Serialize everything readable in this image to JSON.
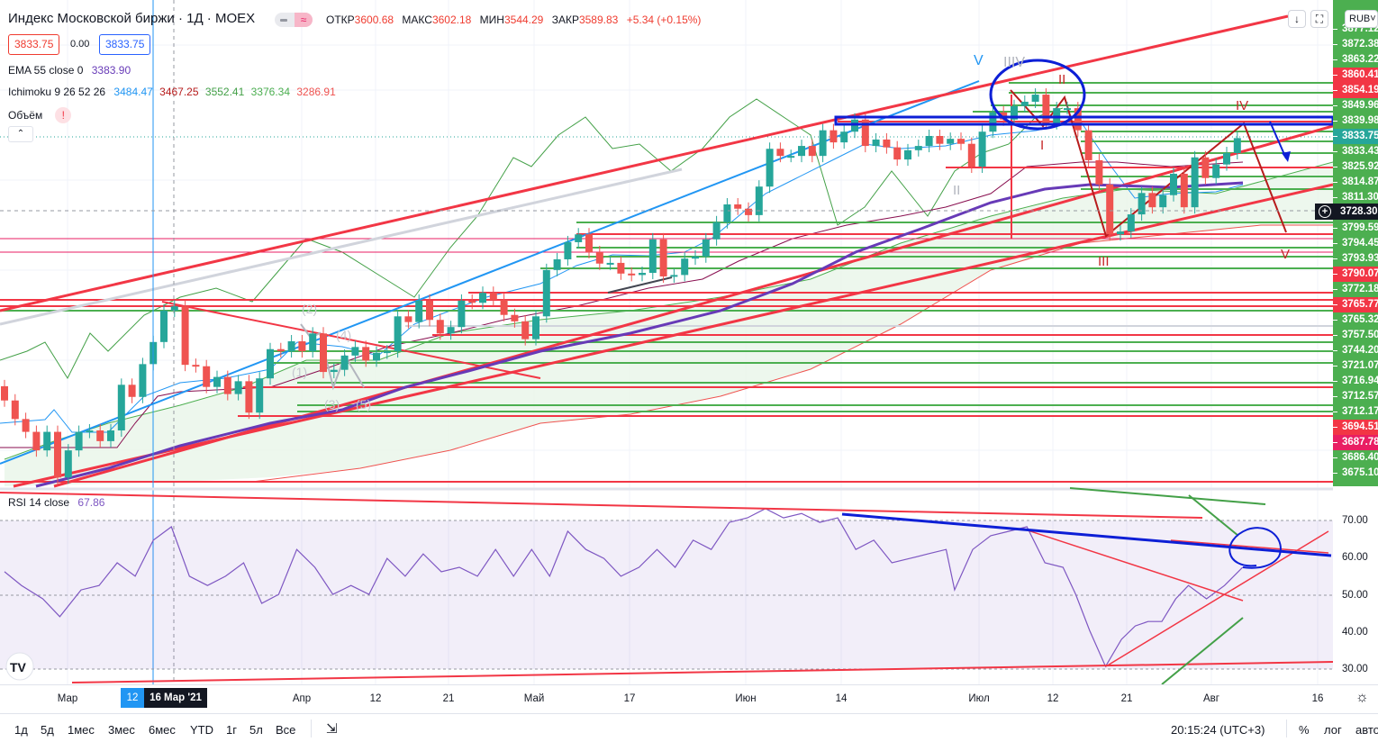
{
  "header": {
    "symbol_title": "Индекс Московской биржи · 1Д · MOEX",
    "mode_icon": "≈",
    "ohlc": [
      {
        "label": "ОТКР",
        "value": "3600.68"
      },
      {
        "label": "МАКС",
        "value": "3602.18"
      },
      {
        "label": "МИН",
        "value": "3544.29"
      },
      {
        "label": "ЗАКР",
        "value": "3589.83"
      }
    ],
    "change": "+5.34 (+0.15%)",
    "sell_price": "3833.75",
    "spread": "0.00",
    "buy_price": "3833.75"
  },
  "indicators": {
    "ema": {
      "label": "EMA 55 close 0",
      "value": "3383.90"
    },
    "ichimoku": {
      "label": "Ichimoku 9 26 52 26",
      "values": [
        "3484.47",
        "3467.25",
        "3552.41",
        "3376.34",
        "3286.91"
      ]
    },
    "volume": {
      "label": "Объём",
      "warning": "!"
    },
    "rsi": {
      "label": "RSI 14 close",
      "value": "67.86"
    }
  },
  "toolbar_right": {
    "currency": "RUB"
  },
  "price_axis": {
    "labels": [
      {
        "v": "3877.12",
        "c": "#4caf50"
      },
      {
        "v": "3872.38",
        "c": "#4caf50"
      },
      {
        "v": "3863.22",
        "c": "#4caf50"
      },
      {
        "v": "3860.41",
        "c": "#f23645"
      },
      {
        "v": "3854.19",
        "c": "#f23645"
      },
      {
        "v": "3849.96",
        "c": "#4caf50"
      },
      {
        "v": "3839.98",
        "c": "#4caf50"
      },
      {
        "v": "3833.75",
        "c": "#26a69a"
      },
      {
        "v": "3833.43",
        "c": "#4caf50"
      },
      {
        "v": "3825.92",
        "c": "#4caf50"
      },
      {
        "v": "3814.87",
        "c": "#4caf50"
      },
      {
        "v": "3811.30",
        "c": "#4caf50"
      },
      {
        "v": "",
        "c": "#4caf50"
      },
      {
        "v": "3799.59",
        "c": "#4caf50"
      },
      {
        "v": "3794.45",
        "c": "#4caf50"
      },
      {
        "v": "3793.93",
        "c": "#4caf50"
      },
      {
        "v": "3790.07",
        "c": "#f23645"
      },
      {
        "v": "3772.18",
        "c": "#4caf50"
      },
      {
        "v": "3765.77",
        "c": "#f23645"
      },
      {
        "v": "3765.32",
        "c": "#4caf50"
      },
      {
        "v": "3757.50",
        "c": "#4caf50"
      },
      {
        "v": "3744.20",
        "c": "#4caf50"
      },
      {
        "v": "3721.07",
        "c": "#4caf50"
      },
      {
        "v": "3716.94",
        "c": "#4caf50"
      },
      {
        "v": "3712.57",
        "c": "#4caf50"
      },
      {
        "v": "3712.17",
        "c": "#4caf50"
      },
      {
        "v": "3694.51",
        "c": "#f23645"
      },
      {
        "v": "3687.78",
        "c": "#e91e63"
      },
      {
        "v": "3686.40",
        "c": "#4caf50"
      },
      {
        "v": "3675.10",
        "c": "#4caf50"
      }
    ],
    "crosshair_price": "3728.30"
  },
  "rsi_axis": [
    "70.00",
    "60.00",
    "50.00",
    "40.00",
    "30.00"
  ],
  "time_axis": {
    "labels": [
      "Мар",
      "Апр",
      "12",
      "21",
      "Май",
      "17",
      "Июн",
      "14",
      "Июл",
      "12",
      "21",
      "Авг",
      "16"
    ],
    "highlight": "12",
    "crosshair_date": "16 Мар '21"
  },
  "wave_labels": {
    "v_blue": "V",
    "ii": "II",
    "i": "I",
    "iii": "III",
    "iv": "IV",
    "v_red": "V",
    "gray_ii": "II",
    "gray_iiiv": "IIIV",
    "sub": [
      "(1)",
      "(2)",
      "(3)",
      "(4)",
      "(5)"
    ]
  },
  "bottom_bar": {
    "ranges": [
      "1д",
      "5д",
      "1мес",
      "3мес",
      "6мес",
      "YTD",
      "1г",
      "5л",
      "Все"
    ],
    "clock": "20:15:24 (UTC+3)",
    "percent": "%",
    "log": "лог",
    "auto": "авто"
  },
  "colors": {
    "up": "#26a69a",
    "down": "#ef5350",
    "level_green": "#4caf50",
    "level_red": "#f23645",
    "ema": "#673ab7",
    "rsi": "#7e57c2"
  },
  "chart_data": {
    "type": "candlestick",
    "note_units": "closes in index points, day index from start of March",
    "closes": [
      3464,
      3438,
      3420,
      3394,
      3420,
      3356,
      3394,
      3420,
      3422,
      3407,
      3422,
      3486,
      3469,
      3515,
      3546,
      3590,
      3596,
      3514,
      3512,
      3483,
      3497,
      3473,
      3491,
      3447,
      3495,
      3536,
      3533,
      3547,
      3533,
      3558,
      3504,
      3507,
      3527,
      3539,
      3520,
      3531,
      3533,
      3582,
      3574,
      3604,
      3577,
      3558,
      3567,
      3604,
      3601,
      3615,
      3605,
      3584,
      3575,
      3550,
      3582,
      3647,
      3662,
      3686,
      3697,
      3672,
      3656,
      3657,
      3642,
      3640,
      3643,
      3690,
      3638,
      3640,
      3663,
      3666,
      3690,
      3714,
      3739,
      3733,
      3724,
      3764,
      3817,
      3807,
      3807,
      3821,
      3807,
      3843,
      3826,
      3841,
      3858,
      3821,
      3830,
      3819,
      3802,
      3815,
      3821,
      3835,
      3824,
      3831,
      3824,
      3792,
      3841,
      3868,
      3858,
      3877,
      3883,
      3893,
      3853,
      3874,
      3874,
      3843,
      3801,
      3767,
      3697,
      3701,
      3725,
      3755,
      3735,
      3752,
      3782,
      3735,
      3805,
      3776,
      3795,
      3811,
      3832
    ],
    "rsi": [
      [
        0,
        56.2
      ],
      [
        1.6,
        52.5
      ],
      [
        3.6,
        48.9
      ],
      [
        5.2,
        44.1
      ],
      [
        7.2,
        51.3
      ],
      [
        8.9,
        52.5
      ],
      [
        10.6,
        58.6
      ],
      [
        12.3,
        55.0
      ],
      [
        14,
        64.7
      ],
      [
        15.7,
        68.3
      ],
      [
        17.4,
        55.0
      ],
      [
        19.1,
        52.5
      ],
      [
        20.8,
        55.0
      ],
      [
        22.5,
        58.6
      ],
      [
        24.2,
        47.7
      ],
      [
        25.8,
        50.1
      ],
      [
        27.5,
        62.2
      ],
      [
        29.2,
        57.4
      ],
      [
        30.9,
        50.1
      ],
      [
        32.6,
        52.5
      ],
      [
        34.3,
        50.1
      ],
      [
        36,
        59.8
      ],
      [
        37.7,
        55.0
      ],
      [
        39.4,
        61.0
      ],
      [
        41.1,
        56.2
      ],
      [
        42.8,
        57.4
      ],
      [
        44.5,
        55.0
      ],
      [
        46.2,
        62.2
      ],
      [
        47.9,
        55.0
      ],
      [
        49.6,
        62.2
      ],
      [
        51.3,
        55.0
      ],
      [
        53,
        67.1
      ],
      [
        54.7,
        62.2
      ],
      [
        56.4,
        59.8
      ],
      [
        58,
        55.0
      ],
      [
        59.7,
        57.4
      ],
      [
        61.4,
        62.2
      ],
      [
        63.1,
        57.4
      ],
      [
        64.8,
        64.7
      ],
      [
        66.5,
        62.2
      ],
      [
        68.2,
        69.5
      ],
      [
        69.9,
        70.7
      ],
      [
        71.6,
        73.2
      ],
      [
        73.3,
        70.7
      ],
      [
        75,
        71.9
      ],
      [
        76.7,
        69.5
      ],
      [
        78.4,
        70.7
      ],
      [
        80.1,
        62.2
      ],
      [
        81.8,
        64.7
      ],
      [
        83.5,
        58.6
      ],
      [
        85.2,
        59.8
      ],
      [
        86.9,
        61.0
      ],
      [
        88.6,
        62.2
      ],
      [
        89.4,
        51.3
      ],
      [
        91.1,
        62.2
      ],
      [
        92.8,
        65.9
      ],
      [
        94.5,
        67.1
      ],
      [
        96.2,
        68.3
      ],
      [
        97.9,
        58.6
      ],
      [
        99.6,
        57.4
      ],
      [
        100.8,
        50.1
      ],
      [
        102.1,
        40.4
      ],
      [
        103.6,
        30.7
      ],
      [
        105.1,
        38.0
      ],
      [
        106.4,
        41.6
      ],
      [
        107.6,
        42.8
      ],
      [
        108.9,
        42.8
      ],
      [
        110.2,
        48.9
      ],
      [
        111.4,
        52.5
      ],
      [
        113.1,
        48.9
      ],
      [
        114.8,
        52.5
      ],
      [
        116.5,
        57.4
      ]
    ],
    "rsi_range": [
      30,
      70
    ]
  }
}
